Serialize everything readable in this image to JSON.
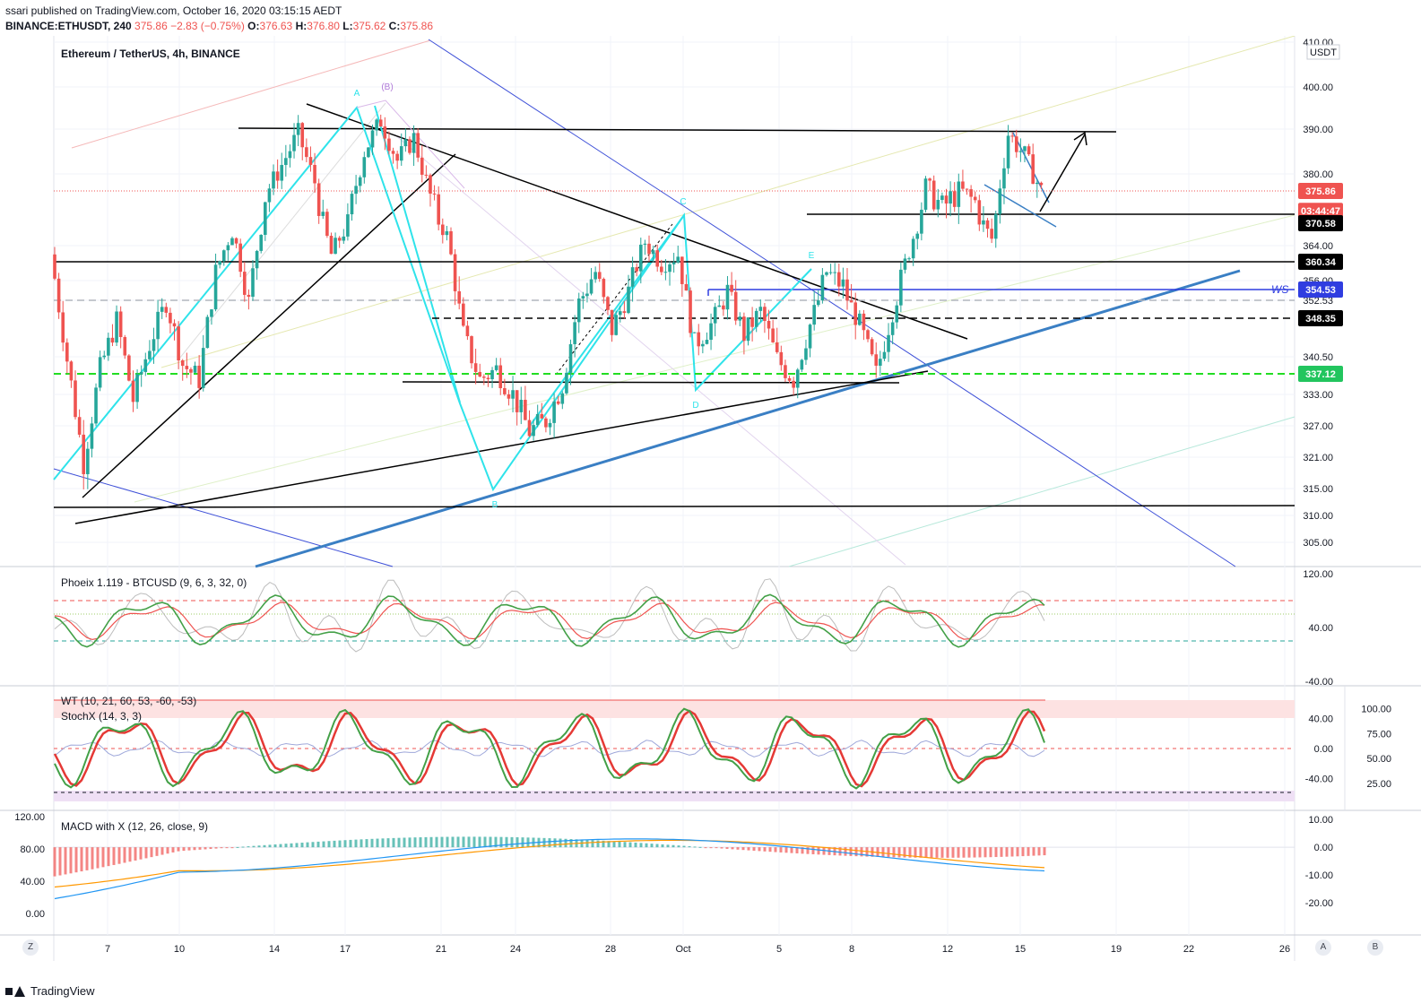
{
  "header": {
    "line1": "ssari published on TradingView.com, October 16, 2020 03:15:15 AEDT",
    "symbol": "BINANCE:ETHUSDT, 240",
    "price": "375.86",
    "change": "−2.83 (−0.75%)",
    "o_label": "O:",
    "o": "376.63",
    "h_label": "H:",
    "h": "376.80",
    "l_label": "L:",
    "l": "375.62",
    "c_label": "C:",
    "c": "375.86"
  },
  "footer": {
    "brand": "TradingView"
  },
  "buttons": {
    "z": "Z",
    "a": "A",
    "b": "B"
  },
  "chart_data": {
    "type": "candlestick",
    "title": "Ethereum / TetherUS, 4h, BINANCE",
    "currency": "USDT",
    "ylim": [
      300,
      410
    ],
    "price_ticks": [
      "410.00",
      "400.00",
      "390.00",
      "380.00",
      "364.00",
      "356.00",
      "352.53",
      "340.50",
      "333.00",
      "327.00",
      "321.00",
      "315.00",
      "310.00",
      "305.00"
    ],
    "price_tick_values": [
      410,
      400,
      390,
      380,
      364,
      356,
      352.53,
      340.5,
      333,
      327,
      321,
      315,
      310,
      305
    ],
    "x_labels": [
      "7",
      "10",
      "14",
      "17",
      "21",
      "24",
      "28",
      "Oct",
      "5",
      "8",
      "12",
      "15",
      "19",
      "22",
      "26"
    ],
    "x_label_days": [
      7,
      10,
      14,
      17,
      21,
      24,
      28,
      31,
      35,
      38,
      42,
      45,
      49,
      52,
      56
    ],
    "price_labels": [
      {
        "text": "375.86",
        "value": 375.86,
        "color": "#ef5350"
      },
      {
        "text": "03:44:47",
        "value": 372.6,
        "color": "#ef5350"
      },
      {
        "text": "370.58",
        "value": 370.58,
        "color": "#000000"
      },
      {
        "text": "360.34",
        "value": 360.34,
        "color": "#000000"
      },
      {
        "text": "354.53",
        "value": 354.53,
        "color": "#2f3de0"
      },
      {
        "text": "348.35",
        "value": 348.35,
        "color": "#000000"
      },
      {
        "text": "337.12",
        "value": 337.12,
        "color": "#22c55e"
      }
    ],
    "levels": [
      {
        "value": 360.34,
        "style": "solid",
        "color": "#000000"
      },
      {
        "value": 348.35,
        "style": "dashed",
        "color": "#000000"
      },
      {
        "value": 337.12,
        "style": "dashed",
        "color": "#22dd22"
      },
      {
        "value": 352.53,
        "style": "dashed",
        "color": "#b2b5be"
      },
      {
        "value": 375.86,
        "style": "dotted",
        "color": "#ef5350"
      }
    ],
    "ws_label": "WS",
    "pattern_labels": [
      "A",
      "(B)",
      "C",
      "D",
      "E",
      "B"
    ],
    "close_series": [
      362,
      340,
      320,
      338,
      348,
      332,
      343,
      352,
      339,
      336,
      358,
      368,
      352,
      375,
      382,
      389,
      378,
      362,
      370,
      385,
      392,
      383,
      388,
      375,
      367,
      345,
      336,
      338,
      333,
      326,
      328,
      335,
      352,
      358,
      346,
      354,
      365,
      360,
      362,
      343,
      347,
      354,
      345,
      350,
      340,
      336,
      347,
      358,
      355,
      347,
      337,
      350,
      363,
      377,
      373,
      376,
      374,
      366,
      389,
      384,
      376
    ],
    "series": [
      {
        "name": "Phoeix 1.119 - BTCUSD (9, 6, 3, 32, 0)",
        "ylim": [
          -40,
          120
        ],
        "ticks": [
          "120.00",
          "40.00",
          "-40.00"
        ],
        "tick_values": [
          120,
          40,
          -40
        ]
      },
      {
        "name": "WT (10, 21, 60, 53, -60, -53)",
        "ylim": [
          -80,
          80
        ],
        "ticks": [
          "40.00",
          "0.00",
          "-40.00"
        ],
        "tick_values": [
          40,
          0,
          -40
        ]
      },
      {
        "name": "StochX (14, 3, 3)",
        "ylim": [
          0,
          120
        ],
        "ticks": [
          "100.00",
          "75.00",
          "50.00",
          "25.00"
        ],
        "tick_values": [
          100,
          75,
          50,
          25
        ]
      },
      {
        "name": "MACD with X (12, 26, close, 9)",
        "ylim": [
          -30,
          12
        ],
        "ticks": [
          "10.00",
          "0.00",
          "-10.00",
          "-20.00"
        ],
        "tick_values": [
          10,
          0,
          -10,
          -20
        ],
        "left_ticks": [
          "120.00",
          "80.00",
          "40.00",
          "0.00"
        ]
      }
    ]
  }
}
